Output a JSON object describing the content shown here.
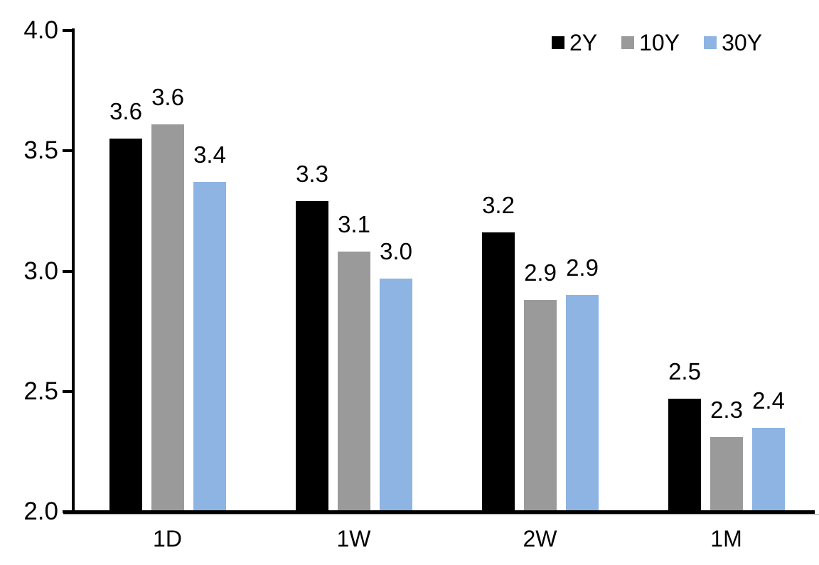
{
  "chart_data": {
    "type": "bar",
    "title": "",
    "xlabel": "",
    "ylabel": "",
    "categories": [
      "1D",
      "1W",
      "2W",
      "1M"
    ],
    "series": [
      {
        "name": "2Y",
        "color": "#000000",
        "values": [
          3.55,
          3.29,
          3.16,
          2.47
        ],
        "labels": [
          "3.6",
          "3.3",
          "3.2",
          "2.5"
        ]
      },
      {
        "name": "10Y",
        "color": "#9A9A9A",
        "values": [
          3.61,
          3.08,
          2.88,
          2.31
        ],
        "labels": [
          "3.6",
          "3.1",
          "2.9",
          "2.3"
        ]
      },
      {
        "name": "30Y",
        "color": "#8DB4E2",
        "values": [
          3.37,
          2.97,
          2.9,
          2.35
        ],
        "labels": [
          "3.4",
          "3.0",
          "2.9",
          "2.4"
        ]
      }
    ],
    "ylim": [
      2.0,
      4.0
    ],
    "yticks": [
      4.0,
      3.5,
      3.0,
      2.5,
      2.0
    ],
    "ytick_labels": [
      "4.0",
      "3.5",
      "3.0",
      "2.5",
      "2.0"
    ],
    "grid": false,
    "data_labels": true,
    "legend_position": "top-right",
    "colors": {
      "axis": "#000000",
      "text": "#000000",
      "background": "#FFFFFF"
    }
  }
}
